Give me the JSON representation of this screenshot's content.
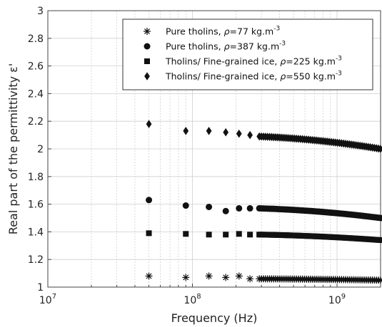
{
  "chart_data": {
    "type": "scatter",
    "xscale": "log",
    "xlim": [
      10000000,
      2000000000
    ],
    "ylim": [
      1,
      3
    ],
    "xlabel": "Frequency (Hz)",
    "ylabel": "Real part of the permittivity ε'",
    "grid": true,
    "legend_position": "top-right",
    "x_ticks": [
      {
        "value": 10000000,
        "base": "10",
        "exp": "7"
      },
      {
        "value": 100000000,
        "base": "10",
        "exp": "8"
      },
      {
        "value": 1000000000,
        "base": "10",
        "exp": "9"
      }
    ],
    "y_ticks": [
      "1",
      "1.2",
      "1.4",
      "1.6",
      "1.8",
      "2",
      "2.2",
      "2.4",
      "2.6",
      "2.8",
      "3"
    ],
    "series": [
      {
        "marker": "asterisk",
        "legend": {
          "prefix": "Pure tholins, ",
          "rho": "ρ",
          "mid": "=77 kg.m",
          "sup": "-3"
        },
        "start_points": [
          [
            50000000,
            1.08
          ],
          [
            90000000,
            1.07
          ],
          [
            130000000,
            1.08
          ],
          [
            170000000,
            1.07
          ],
          [
            210000000,
            1.08
          ],
          [
            250000000,
            1.06
          ]
        ],
        "dense": {
          "x_start": 290000000,
          "x_end": 2000000000,
          "count": 60,
          "y_start": 1.06,
          "y_end": 1.05
        }
      },
      {
        "marker": "circle",
        "legend": {
          "prefix": "Pure tholins, ",
          "rho": "ρ",
          "mid": "=387 kg.m",
          "sup": "-3"
        },
        "start_points": [
          [
            50000000,
            1.63
          ],
          [
            90000000,
            1.59
          ],
          [
            130000000,
            1.58
          ],
          [
            170000000,
            1.55
          ],
          [
            210000000,
            1.57
          ],
          [
            250000000,
            1.57
          ]
        ],
        "dense": {
          "x_start": 290000000,
          "x_end": 2000000000,
          "count": 60,
          "y_start": 1.57,
          "y_end": 1.5
        }
      },
      {
        "marker": "square",
        "legend": {
          "prefix": "Tholins/ Fine-grained ice, ",
          "rho": "ρ",
          "mid": "=225 kg.m",
          "sup": "-3"
        },
        "start_points": [
          [
            50000000,
            1.39
          ],
          [
            90000000,
            1.385
          ],
          [
            130000000,
            1.38
          ],
          [
            170000000,
            1.38
          ],
          [
            210000000,
            1.385
          ],
          [
            250000000,
            1.38
          ]
        ],
        "dense": {
          "x_start": 290000000,
          "x_end": 2000000000,
          "count": 60,
          "y_start": 1.38,
          "y_end": 1.34
        }
      },
      {
        "marker": "diamond",
        "legend": {
          "prefix": "Tholins/ Fine-grained ice, ",
          "rho": "ρ",
          "mid": "=550 kg.m",
          "sup": "-3"
        },
        "start_points": [
          [
            50000000,
            2.18
          ],
          [
            90000000,
            2.13
          ],
          [
            130000000,
            2.13
          ],
          [
            170000000,
            2.12
          ],
          [
            210000000,
            2.11
          ],
          [
            250000000,
            2.1
          ]
        ],
        "dense": {
          "x_start": 290000000,
          "x_end": 2000000000,
          "count": 60,
          "y_start": 2.09,
          "y_end": 2.0
        }
      }
    ]
  }
}
